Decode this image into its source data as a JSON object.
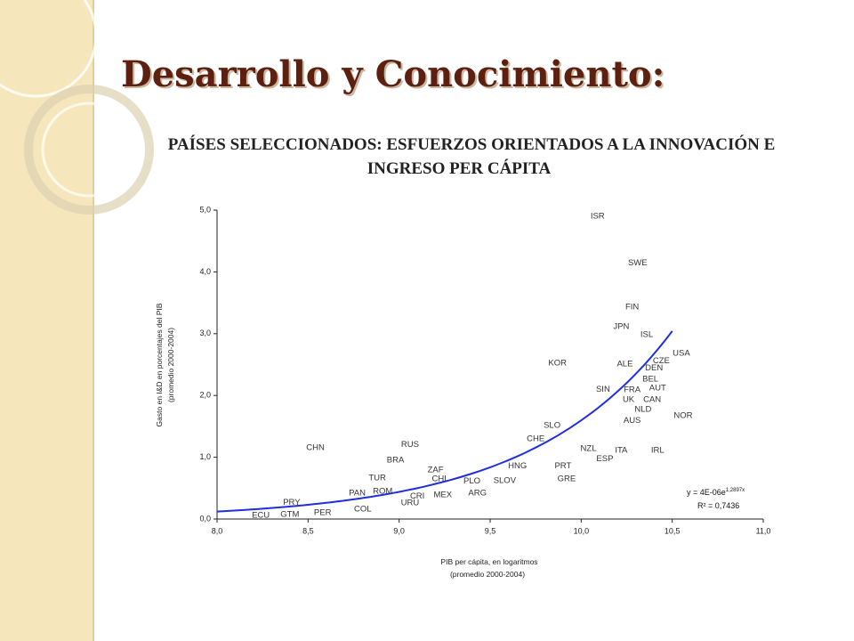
{
  "slide": {
    "title": "Desarrollo y Conocimiento:"
  },
  "chart_data": {
    "type": "scatter",
    "title": [
      "PAÍSES SELECCIONADOS: ESFUERZOS ORIENTADOS A LA INNOVACIÓN E",
      "INGRESO PER CÁPITA"
    ],
    "x_label": [
      "PIB per cápita, en logaritmos",
      "(promedio 2000-2004)"
    ],
    "y_label": [
      "Gasto en I&D en porcentajes del PIB",
      "(promedio 2000-2004)"
    ],
    "labels": [
      "ISR",
      "SWE",
      "FIN",
      "JPN",
      "ISL",
      "USA",
      "KOR",
      "ALE",
      "CZE",
      "DEN",
      "BEL",
      "AUT",
      "SIN",
      "FRA",
      "UK",
      "CAN",
      "NLD",
      "NOR",
      "AUS",
      "SLO",
      "CHE",
      "NZL",
      "ITA",
      "IRL",
      "ESP",
      "HNG",
      "PRT",
      "GRE",
      "SLOV",
      "PLO",
      "ARG",
      "MEX",
      "ZAF",
      "CHI",
      "CRI",
      "URU",
      "RUS",
      "BRA",
      "CHN",
      "TUR",
      "ROM",
      "PAN",
      "COL",
      "PRY",
      "PER",
      "GTM",
      "ECU"
    ],
    "x": [
      10.09,
      10.31,
      10.28,
      10.22,
      10.36,
      10.55,
      9.87,
      10.24,
      10.44,
      10.4,
      10.38,
      10.42,
      10.12,
      10.28,
      10.26,
      10.39,
      10.34,
      10.56,
      10.28,
      9.84,
      9.75,
      10.04,
      10.22,
      10.42,
      10.13,
      9.65,
      9.9,
      9.92,
      9.58,
      9.4,
      9.43,
      9.24,
      9.2,
      9.22,
      9.1,
      9.06,
      9.06,
      8.98,
      8.54,
      8.88,
      8.91,
      8.77,
      8.8,
      8.41,
      8.58,
      8.4,
      8.24
    ],
    "y": [
      4.9,
      4.14,
      3.43,
      3.11,
      2.98,
      2.68,
      2.52,
      2.51,
      2.56,
      2.44,
      2.26,
      2.12,
      2.1,
      2.09,
      1.93,
      1.93,
      1.77,
      1.67,
      1.59,
      1.51,
      1.3,
      1.14,
      1.11,
      1.11,
      0.97,
      0.86,
      0.86,
      0.65,
      0.62,
      0.61,
      0.42,
      0.39,
      0.79,
      0.65,
      0.37,
      0.26,
      1.2,
      0.95,
      1.15,
      0.66,
      0.45,
      0.42,
      0.16,
      0.27,
      0.1,
      0.07,
      0.06
    ],
    "xlim": [
      8,
      11
    ],
    "ylim": [
      0,
      5
    ],
    "xticks": [
      {
        "value": 8,
        "label": "8,0"
      },
      {
        "value": 8.5,
        "label": "8,5"
      },
      {
        "value": 9,
        "label": "9,0"
      },
      {
        "value": 9.5,
        "label": "9,5"
      },
      {
        "value": 10,
        "label": "10,0"
      },
      {
        "value": 10.5,
        "label": "10,5"
      },
      {
        "value": 11,
        "label": "11,0"
      }
    ],
    "yticks": [
      {
        "value": 0,
        "label": "0,0"
      },
      {
        "value": 1,
        "label": "1,0"
      },
      {
        "value": 2,
        "label": "2,0"
      },
      {
        "value": 3,
        "label": "3,0"
      },
      {
        "value": 4,
        "label": "4,0"
      },
      {
        "value": 5,
        "label": "5,0"
      }
    ],
    "trendline": {
      "label": "y = 4E-06e",
      "label_exponent": "1,2897x",
      "r2_label": "R² = 0,7436",
      "coefficient": 4e-06,
      "exponent": 1.2897,
      "xlim": [
        8,
        10.5
      ],
      "color": "#1f2fe0"
    }
  }
}
